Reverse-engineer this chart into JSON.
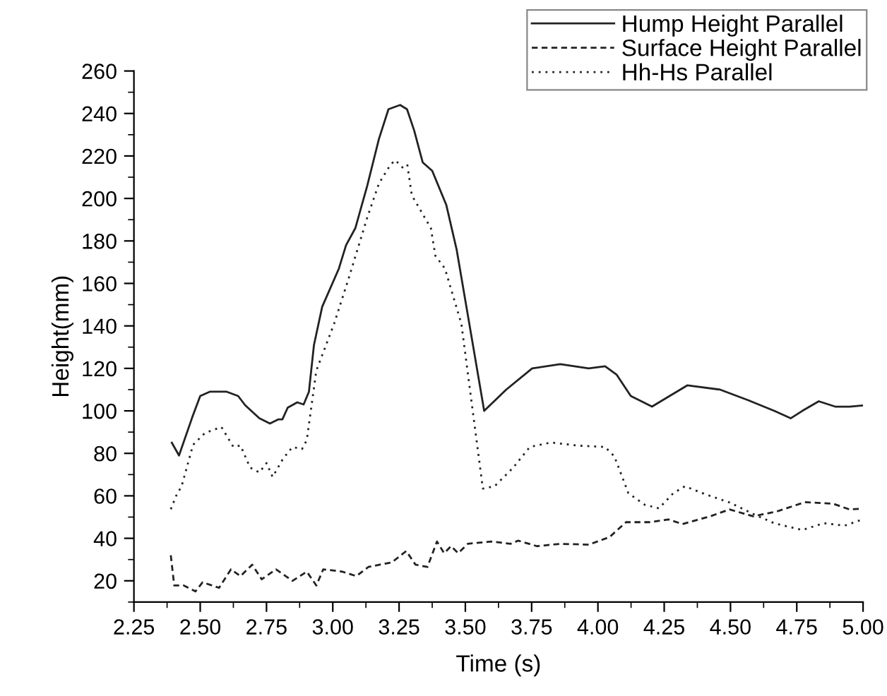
{
  "chart_data": {
    "type": "line",
    "xlabel": "Time (s)",
    "ylabel": "Height(mm)",
    "xlim": [
      2.25,
      5.0
    ],
    "xticks": [
      {
        "value": 2.25,
        "label": "2.25"
      },
      {
        "value": 2.5,
        "label": "2.50"
      },
      {
        "value": 2.75,
        "label": "2.75"
      },
      {
        "value": 3.0,
        "label": "3.00"
      },
      {
        "value": 3.25,
        "label": "3.25"
      },
      {
        "value": 3.5,
        "label": "3.50"
      },
      {
        "value": 3.75,
        "label": "3.75"
      },
      {
        "value": 4.0,
        "label": "4.00"
      },
      {
        "value": 4.25,
        "label": "4.25"
      },
      {
        "value": 4.5,
        "label": "4.50"
      },
      {
        "value": 4.75,
        "label": "4.75"
      },
      {
        "value": 5.0,
        "label": "5.00"
      }
    ],
    "ylim": [
      10,
      260
    ],
    "yticks": [
      20,
      40,
      60,
      80,
      100,
      120,
      140,
      160,
      180,
      200,
      220,
      240,
      260
    ],
    "grid": false,
    "legend": "top right",
    "marker": "none",
    "series": [
      {
        "name": "Hump Height Parallel",
        "color": "#222222",
        "line_style": "solid",
        "x": [
          2.393,
          2.42,
          2.47,
          2.5,
          2.536,
          2.6,
          2.643,
          2.67,
          2.723,
          2.763,
          2.795,
          2.81,
          2.83,
          2.866,
          2.89,
          2.91,
          2.929,
          2.96,
          3.023,
          3.05,
          3.085,
          3.13,
          3.174,
          3.21,
          3.254,
          3.28,
          3.307,
          3.339,
          3.375,
          3.428,
          3.467,
          3.53,
          3.571,
          3.654,
          3.752,
          3.858,
          3.965,
          4.027,
          4.071,
          4.124,
          4.204,
          4.257,
          4.337,
          4.461,
          4.567,
          4.665,
          4.727,
          4.771,
          4.833,
          4.895,
          4.949,
          4.996
        ],
        "values": [
          85,
          79,
          97,
          107,
          109,
          109,
          107,
          102.6,
          96.5,
          94,
          96,
          96,
          101.5,
          104,
          103,
          109,
          131,
          149,
          167,
          178,
          186,
          206,
          228,
          242,
          244,
          242,
          232,
          217,
          213,
          197,
          176,
          130,
          100,
          110,
          120,
          122,
          120,
          121,
          117,
          107,
          102,
          106,
          112,
          110,
          105,
          100,
          96.5,
          100,
          104.5,
          102,
          102,
          102.5
        ]
      },
      {
        "name": "Surface Height Parallel",
        "color": "#222222",
        "line_style": "dashed",
        "x": [
          2.389,
          2.402,
          2.438,
          2.482,
          2.509,
          2.571,
          2.616,
          2.652,
          2.696,
          2.732,
          2.786,
          2.848,
          2.902,
          2.938,
          2.964,
          3.036,
          3.089,
          3.134,
          3.223,
          3.277,
          3.312,
          3.357,
          3.393,
          3.42,
          3.446,
          3.473,
          3.509,
          3.598,
          3.67,
          3.699,
          3.77,
          3.858,
          3.965,
          4.044,
          4.106,
          4.195,
          4.266,
          4.319,
          4.425,
          4.496,
          4.585,
          4.674,
          4.78,
          4.887,
          4.949,
          4.996
        ],
        "values": [
          32,
          17.8,
          17.8,
          15,
          19.3,
          16.7,
          25.4,
          22.2,
          27.6,
          20.7,
          25.4,
          20,
          24.3,
          17.8,
          25.4,
          24.3,
          22.2,
          26.5,
          28.7,
          34,
          27.6,
          26.5,
          38.5,
          33,
          36.3,
          33,
          37.4,
          38.5,
          37.4,
          38.9,
          36.3,
          37.4,
          37,
          40.6,
          47.6,
          47.6,
          48.9,
          46.7,
          50.4,
          53.6,
          50.4,
          52.6,
          57,
          56.3,
          53.6,
          54
        ]
      },
      {
        "name": "Hh-Hs Parallel",
        "color": "#222222",
        "line_style": "dotted",
        "x": [
          2.389,
          2.41,
          2.43,
          2.473,
          2.518,
          2.58,
          2.625,
          2.652,
          2.688,
          2.723,
          2.75,
          2.773,
          2.813,
          2.848,
          2.884,
          2.902,
          2.938,
          3.005,
          3.059,
          3.13,
          3.174,
          3.218,
          3.236,
          3.263,
          3.281,
          3.298,
          3.37,
          3.387,
          3.423,
          3.485,
          3.566,
          3.61,
          3.68,
          3.743,
          3.823,
          3.929,
          4.027,
          4.062,
          4.115,
          4.177,
          4.23,
          4.284,
          4.328,
          4.408,
          4.496,
          4.585,
          4.665,
          4.771,
          4.851,
          4.931,
          4.996
        ],
        "values": [
          53.7,
          60.2,
          64.6,
          84,
          89.6,
          92.4,
          83,
          83.7,
          73.3,
          71,
          75.4,
          68.9,
          77.6,
          83,
          82,
          86.3,
          119,
          141,
          162,
          191,
          207,
          216,
          218,
          214.6,
          216,
          201.5,
          186,
          173,
          167,
          141,
          63.4,
          64.5,
          73.2,
          83,
          85.1,
          83.6,
          83,
          78.6,
          61.2,
          55.8,
          54.1,
          61.2,
          64.5,
          60.6,
          56.9,
          51.5,
          47.1,
          43.9,
          47.1,
          46,
          48.8
        ]
      }
    ]
  }
}
